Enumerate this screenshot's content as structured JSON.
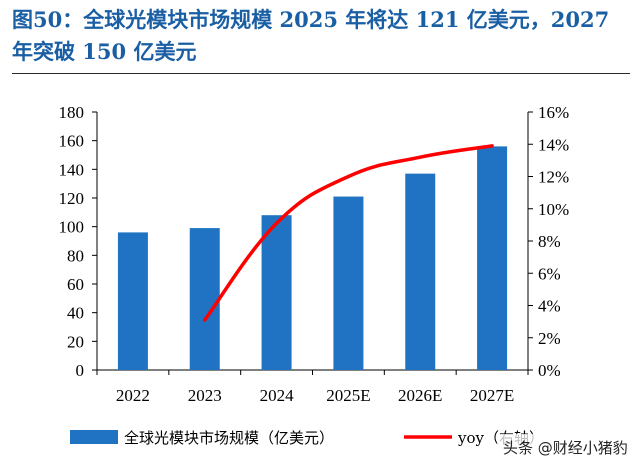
{
  "figure": {
    "title_line1": "图50：全球光模块市场规模 2025 年将达 121 亿美元，2027",
    "title_line2": "年突破 150 亿美元"
  },
  "chart_data": {
    "type": "bar",
    "categories": [
      "2022",
      "2023",
      "2024",
      "2025E",
      "2026E",
      "2027E"
    ],
    "series": [
      {
        "name": "全球光模块市场规模（亿美元）",
        "type": "bar",
        "axis": "left",
        "color": "#1f73c2",
        "values": [
          96,
          99,
          108,
          121,
          137,
          156
        ]
      },
      {
        "name": "yoy（右轴）",
        "type": "line",
        "axis": "right",
        "color": "#ff0000",
        "values": [
          null,
          3.1,
          9.1,
          12.0,
          13.2,
          13.9
        ]
      }
    ],
    "y_left": {
      "ylim": [
        0,
        180
      ],
      "ticks": [
        "0",
        "20",
        "40",
        "60",
        "80",
        "100",
        "120",
        "140",
        "160",
        "180"
      ]
    },
    "y_right": {
      "ylim": [
        0,
        16
      ],
      "ticks": [
        "0%",
        "2%",
        "4%",
        "6%",
        "8%",
        "10%",
        "12%",
        "14%",
        "16%"
      ]
    },
    "grid": false,
    "legend_position": "bottom"
  },
  "watermark": "头条 @财经小猪豹"
}
